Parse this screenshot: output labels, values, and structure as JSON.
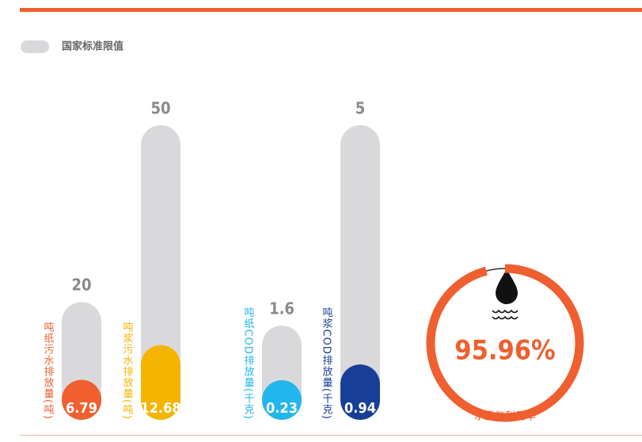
{
  "chart_data": {
    "type": "bar",
    "legend": {
      "label": "国家标准限值",
      "color": "#d9d9dc"
    },
    "groups": [
      {
        "bars": [
          {
            "name": "吨纸污水排放量(吨)",
            "limit": 20,
            "value": 6.79,
            "color": "#ef5f2f"
          },
          {
            "name": "吨浆污水排放量(吨)",
            "limit": 50,
            "value": 12.68,
            "color": "#f5b400"
          }
        ]
      },
      {
        "bars": [
          {
            "name": "吨纸COD排放量(千克)",
            "limit": 1.6,
            "value": 0.23,
            "color": "#22b7ec"
          },
          {
            "name": "吨浆COD排放量(千克)",
            "limit": 5,
            "value": 0.94,
            "color": "#173f98"
          }
        ]
      }
    ],
    "gauge": {
      "value": 95.96,
      "value_label": "95.96%",
      "label": "水重复利用率",
      "color": "#ef5f2f"
    }
  }
}
